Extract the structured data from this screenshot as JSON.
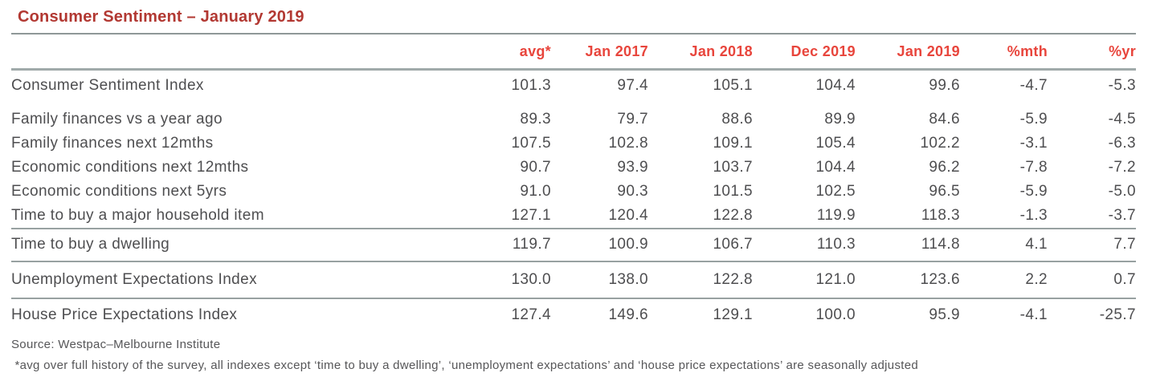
{
  "title": "Consumer Sentiment – January 2019",
  "colors": {
    "title": "#b23832",
    "header_accent": "#e8453c",
    "body_text": "#4e4e50",
    "rule": "#98a1a1"
  },
  "table": {
    "columns": [
      "avg*",
      "Jan 2017",
      "Jan 2018",
      "Dec 2019",
      "Jan 2019",
      "%mth",
      "%yr"
    ],
    "rows": [
      {
        "label": "Consumer Sentiment Index",
        "values": [
          "101.3",
          "97.4",
          "105.1",
          "104.4",
          "99.6",
          "-4.7",
          "-5.3"
        ],
        "spacer_below": true
      },
      {
        "label": "Family finances vs a year ago",
        "values": [
          "89.3",
          "79.7",
          "88.6",
          "89.9",
          "84.6",
          "-5.9",
          "-4.5"
        ]
      },
      {
        "label": "Family finances next 12mths",
        "values": [
          "107.5",
          "102.8",
          "109.1",
          "105.4",
          "102.2",
          "-3.1",
          "-6.3"
        ]
      },
      {
        "label": "Economic conditions next 12mths",
        "values": [
          "90.7",
          "93.9",
          "103.7",
          "104.4",
          "96.2",
          "-7.8",
          "-7.2"
        ]
      },
      {
        "label": "Economic conditions next 5yrs",
        "values": [
          "91.0",
          "90.3",
          "101.5",
          "102.5",
          "96.5",
          "-5.9",
          "-5.0"
        ]
      },
      {
        "label": "Time to buy a major household item",
        "values": [
          "127.1",
          "120.4",
          "122.8",
          "119.9",
          "118.3",
          "-1.3",
          "-3.7"
        ]
      },
      {
        "label": "Time to buy a dwelling",
        "values": [
          "119.7",
          "100.9",
          "106.7",
          "110.3",
          "114.8",
          "4.1",
          "7.7"
        ],
        "divider_above": true,
        "size": "t1"
      },
      {
        "label": "Unemployment Expectations Index",
        "values": [
          "130.0",
          "138.0",
          "122.8",
          "121.0",
          "123.6",
          "2.2",
          "0.7"
        ],
        "divider_above": true,
        "size": "t2"
      },
      {
        "label": "House Price Expectations Index",
        "values": [
          "127.4",
          "149.6",
          "129.1",
          "100.0",
          "95.9",
          "-4.1",
          "-25.7"
        ],
        "divider_above": true,
        "size": "t3"
      }
    ]
  },
  "source": "Source: Westpac–Melbourne Institute",
  "footnote": " *avg over full history of the survey, all indexes except ‘time to buy a dwelling’, ‘unemployment expectations’ and ‘house price expectations’ are seasonally adjusted"
}
